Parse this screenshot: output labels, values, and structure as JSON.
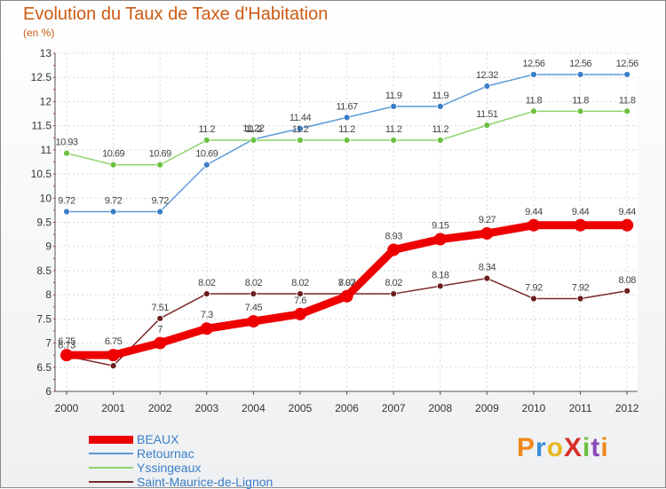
{
  "title": "Evolution du Taux de Taxe d'Habitation",
  "unit_label": "(en %)",
  "brand": "ProXiti",
  "chart_data": {
    "type": "line",
    "title": "Evolution du Taux de Taxe d'Habitation",
    "ylabel": "(en %)",
    "xlabel": "",
    "ylim": [
      6,
      13
    ],
    "yticks": [
      6,
      6.5,
      7,
      7.5,
      8,
      8.5,
      9,
      9.5,
      10,
      10.5,
      11,
      11.5,
      12,
      12.5,
      13
    ],
    "x": [
      "2000",
      "2001",
      "2002",
      "2003",
      "2004",
      "2005",
      "2006",
      "2007",
      "2008",
      "2009",
      "2010",
      "2011",
      "2012"
    ],
    "grid": true,
    "legend_position": "bottom-left",
    "series": [
      {
        "name": "Retournac",
        "color": "#5b9bd5",
        "point_color": "#3a7ec8",
        "values": [
          9.72,
          9.72,
          9.72,
          10.69,
          11.22,
          11.44,
          11.67,
          11.9,
          11.9,
          12.32,
          12.56,
          12.56,
          12.56
        ],
        "labels": [
          "9.72",
          "9.72",
          "9.72",
          "10.69",
          "11.22",
          "11.44",
          "11.67",
          "11.9",
          "11.9",
          "12.32",
          "12.56",
          "12.56",
          "12.56"
        ]
      },
      {
        "name": "Yssingeaux",
        "color": "#8ed36a",
        "point_color": "#6cc040",
        "values": [
          10.93,
          10.69,
          10.69,
          11.2,
          11.2,
          11.2,
          11.2,
          11.2,
          11.2,
          11.51,
          11.8,
          11.8,
          11.8
        ],
        "labels": [
          "10.93",
          "10.69",
          "10.69",
          "11.2",
          "11.2",
          "11.2",
          "11.2",
          "11.2",
          "11.2",
          "11.51",
          "11.8",
          "11.8",
          "11.8"
        ]
      },
      {
        "name": "Saint-Maurice-de-Lignon",
        "color": "#7a2a2a",
        "point_color": "#6a1e1e",
        "values": [
          6.73,
          6.53,
          7.51,
          8.02,
          8.02,
          8.02,
          8.02,
          8.02,
          8.18,
          8.34,
          7.92,
          7.92,
          8.08
        ],
        "labels": [
          "6.73",
          "6.53",
          "7.51",
          "8.02",
          "8.02",
          "8.02",
          "8.02",
          "8.02",
          "8.18",
          "8.34",
          "7.92",
          "7.92",
          "8.08"
        ]
      },
      {
        "name": "BEAUX",
        "color": "#ee0000",
        "point_color": "#ee0000",
        "values": [
          6.75,
          6.75,
          7,
          7.3,
          7.45,
          7.6,
          7.97,
          8.93,
          9.15,
          9.27,
          9.44,
          9.44,
          9.44
        ],
        "labels": [
          "6.75",
          "6.75",
          "7",
          "7.3",
          "7.45",
          "7.6",
          "7.97",
          "8.93",
          "9.15",
          "9.27",
          "9.44",
          "9.44",
          "9.44"
        ]
      }
    ]
  },
  "legend": [
    {
      "name": "BEAUX",
      "color": "#ee0000",
      "text_color": "#3a7ec8"
    },
    {
      "name": "Retournac",
      "color": "#5b9bd5",
      "text_color": "#3a7ec8"
    },
    {
      "name": "Yssingeaux",
      "color": "#8ed36a",
      "text_color": "#3a7ec8"
    },
    {
      "name": "Saint-Maurice-de-Lignon",
      "color": "#7a2a2a",
      "text_color": "#3a7ec8"
    }
  ]
}
